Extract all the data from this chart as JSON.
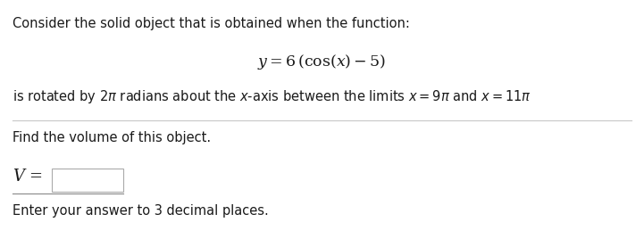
{
  "line1": "Consider the solid object that is obtained when the function:",
  "line4": "Find the volume of this object.",
  "line6": "Enter your answer to 3 decimal places.",
  "bg_color": "#ffffff",
  "text_color": "#1a1a1a",
  "divider_color": "#c8c8c8",
  "fontsize_body": 10.5,
  "fontsize_eq": 12.5,
  "fontsize_V": 13
}
